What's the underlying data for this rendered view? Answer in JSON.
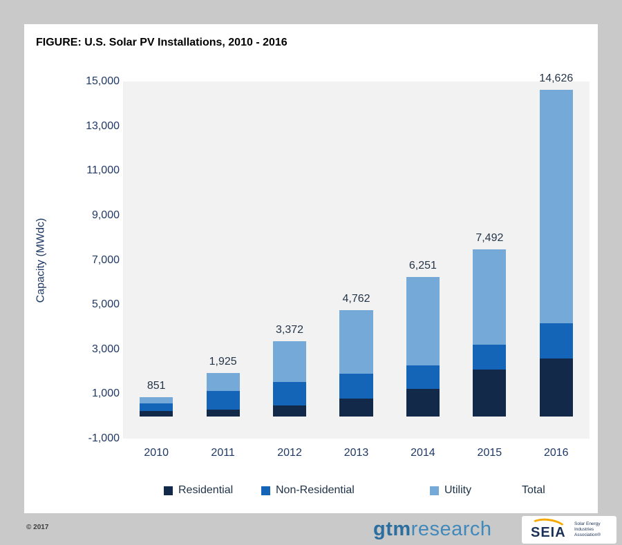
{
  "header": {
    "title": "FIGURE: U.S. Solar PV Installations, 2010 - 2016"
  },
  "chart_data": {
    "type": "bar",
    "stacked": true,
    "title": "FIGURE: U.S. Solar PV Installations, 2010 - 2016",
    "ylabel": "Capacity (MWdc)",
    "xlabel": "",
    "ylim": [
      -1000,
      15000
    ],
    "grid": false,
    "legend_position": "bottom",
    "plot_background": "#f2f2f2",
    "axis_text_color": "#1f3864",
    "yticks": [
      "15,000",
      "13,000",
      "11,000",
      "9,000",
      "7,000",
      "5,000",
      "3,000",
      "1,000",
      "-1,000"
    ],
    "categories": [
      "2010",
      "2011",
      "2012",
      "2013",
      "2014",
      "2015",
      "2016"
    ],
    "series": [
      {
        "name": "Residential",
        "color": "#13294a",
        "values": [
          246,
          298,
          488,
          792,
          1231,
          2099,
          2583
        ]
      },
      {
        "name": "Non-Residential",
        "color": "#1464b8",
        "values": [
          341,
          828,
          1043,
          1112,
          1036,
          1104,
          1586
        ]
      },
      {
        "name": "Utility",
        "color": "#74a9d8",
        "values": [
          264,
          799,
          1841,
          2858,
          3984,
          4289,
          10457
        ]
      }
    ],
    "totals": [
      851,
      1925,
      3372,
      4762,
      6251,
      7492,
      14626
    ],
    "total_labels": [
      "851",
      "1,925",
      "3,372",
      "4,762",
      "6,251",
      "7,492",
      "14,626"
    ]
  },
  "legend": {
    "items": [
      {
        "label": "Residential"
      },
      {
        "label": "Non-Residential"
      },
      {
        "label": "Utility"
      },
      {
        "label": "Total"
      }
    ]
  },
  "footer": {
    "copyright": "© 2017",
    "gtm_logo": {
      "part1": "gtm",
      "part2": "research"
    },
    "seia_logo": {
      "name": "SEIA",
      "tagline_lines": [
        "Solar Energy",
        "Industries",
        "Association®"
      ]
    }
  }
}
